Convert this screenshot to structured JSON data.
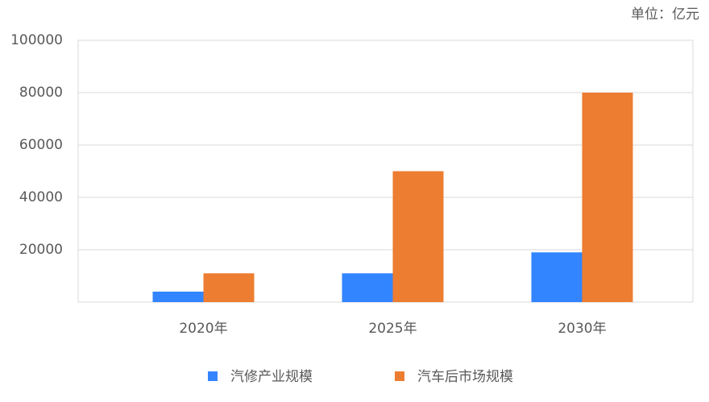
{
  "chart_data": {
    "type": "bar",
    "unit_note": "单位：亿元",
    "categories": [
      "2020年",
      "2025年",
      "2030年"
    ],
    "series": [
      {
        "name": "汽修产业规模",
        "color": "#3385ff",
        "values": [
          4000,
          11000,
          19000
        ]
      },
      {
        "name": "汽车后市场规模",
        "color": "#ed7d31",
        "values": [
          11000,
          50000,
          80000
        ]
      }
    ],
    "ylim": [
      0,
      100000
    ],
    "yticks": [
      20000,
      40000,
      60000,
      80000,
      100000
    ],
    "grid": true,
    "legend": "bottom"
  }
}
